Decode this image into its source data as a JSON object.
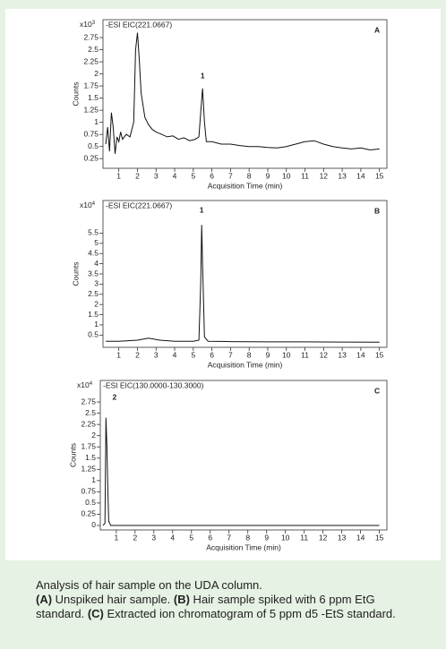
{
  "chart_data": [
    {
      "type": "line",
      "scale_label": "x10",
      "scale_exponent": "3",
      "trace_label": "-ESI  EIC(221.0667)",
      "panel_label": "A",
      "peak_label": "1",
      "xlabel": "Acquisition Time (min)",
      "ylabel": "Counts",
      "color": "#111",
      "xlim": [
        0.15,
        15.4
      ],
      "ylim": [
        0.05,
        3.12
      ],
      "xticks": [
        1,
        2,
        3,
        4,
        5,
        6,
        7,
        8,
        9,
        10,
        11,
        12,
        13,
        14,
        15
      ],
      "yticks": [
        0.25,
        0.5,
        0.75,
        1,
        1.25,
        1.5,
        1.75,
        2,
        2.25,
        2.5,
        2.75
      ],
      "x": [
        0.3,
        0.4,
        0.5,
        0.6,
        0.7,
        0.8,
        0.9,
        1.0,
        1.1,
        1.2,
        1.4,
        1.6,
        1.8,
        1.9,
        2.0,
        2.1,
        2.2,
        2.4,
        2.6,
        2.8,
        3.0,
        3.3,
        3.6,
        3.9,
        4.2,
        4.5,
        4.8,
        5.1,
        5.3,
        5.4,
        5.5,
        5.6,
        5.7,
        6.0,
        6.5,
        7.0,
        7.5,
        8.0,
        8.5,
        9.0,
        9.5,
        10.0,
        10.5,
        11.0,
        11.5,
        12.0,
        12.5,
        13.0,
        13.5,
        14.0,
        14.5,
        15.0
      ],
      "values": [
        0.55,
        0.9,
        0.4,
        1.2,
        0.9,
        0.35,
        0.7,
        0.6,
        0.8,
        0.65,
        0.75,
        0.7,
        1.0,
        2.5,
        2.85,
        2.3,
        1.6,
        1.1,
        0.95,
        0.85,
        0.8,
        0.75,
        0.7,
        0.72,
        0.65,
        0.68,
        0.62,
        0.65,
        0.7,
        1.2,
        1.7,
        1.0,
        0.6,
        0.6,
        0.55,
        0.55,
        0.52,
        0.5,
        0.5,
        0.48,
        0.47,
        0.5,
        0.55,
        0.6,
        0.62,
        0.55,
        0.5,
        0.47,
        0.45,
        0.47,
        0.43,
        0.45
      ]
    },
    {
      "type": "line",
      "scale_label": "x10",
      "scale_exponent": "4",
      "trace_label": "-ESI  EIC(221.0667)",
      "panel_label": "B",
      "peak_label": "1",
      "xlabel": "Acquisition Time (min)",
      "ylabel": "Counts",
      "color": "#111",
      "xlim": [
        0.15,
        15.4
      ],
      "ylim": [
        -0.1,
        7.1
      ],
      "xticks": [
        1,
        2,
        3,
        4,
        5,
        6,
        7,
        8,
        9,
        10,
        11,
        12,
        13,
        14,
        15
      ],
      "yticks": [
        0.5,
        1,
        1.5,
        2,
        2.5,
        3,
        3.5,
        4,
        4.5,
        5,
        5.5
      ],
      "x": [
        0.3,
        1,
        2,
        2.6,
        3.2,
        4,
        5,
        5.3,
        5.4,
        5.45,
        5.5,
        5.6,
        5.8,
        7,
        9,
        11,
        13,
        15
      ],
      "values": [
        0.2,
        0.2,
        0.25,
        0.35,
        0.25,
        0.2,
        0.2,
        0.25,
        3.0,
        5.9,
        4.0,
        0.4,
        0.2,
        0.18,
        0.17,
        0.17,
        0.16,
        0.15
      ]
    },
    {
      "type": "line",
      "scale_label": "x10",
      "scale_exponent": "4",
      "trace_label": "-ESI  EIC(130.0000-130.3000)",
      "panel_label": "C",
      "peak_label": "2",
      "xlabel": "Acquisition Time (min)",
      "ylabel": "Counts",
      "color": "#111",
      "xlim": [
        0.15,
        15.4
      ],
      "ylim": [
        -0.1,
        3.23
      ],
      "xticks": [
        1,
        2,
        3,
        4,
        5,
        6,
        7,
        8,
        9,
        10,
        11,
        12,
        13,
        14,
        15
      ],
      "yticks": [
        0,
        0.25,
        0.5,
        0.75,
        1,
        1.25,
        1.5,
        1.75,
        2,
        2.25,
        2.5,
        2.75
      ],
      "x": [
        0.3,
        0.4,
        0.45,
        0.5,
        0.55,
        0.6,
        0.7,
        2,
        15
      ],
      "values": [
        0,
        0.05,
        2.4,
        1.8,
        0.8,
        0.1,
        0,
        0,
        0
      ]
    }
  ],
  "caption": [
    {
      "text": "Analysis of hair sample on the UDA column."
    },
    {
      "text": "(A)",
      "bold": true
    },
    {
      "text": " Unspiked hair sample. "
    },
    {
      "text": "(B)",
      "bold": true
    },
    {
      "text": " Hair sample spiked with 6 ppm EtG standard. "
    },
    {
      "text": "(C)",
      "bold": true
    },
    {
      "text": " Extracted ion chromatogram of 5 ppm d5 -EtS standard."
    }
  ]
}
